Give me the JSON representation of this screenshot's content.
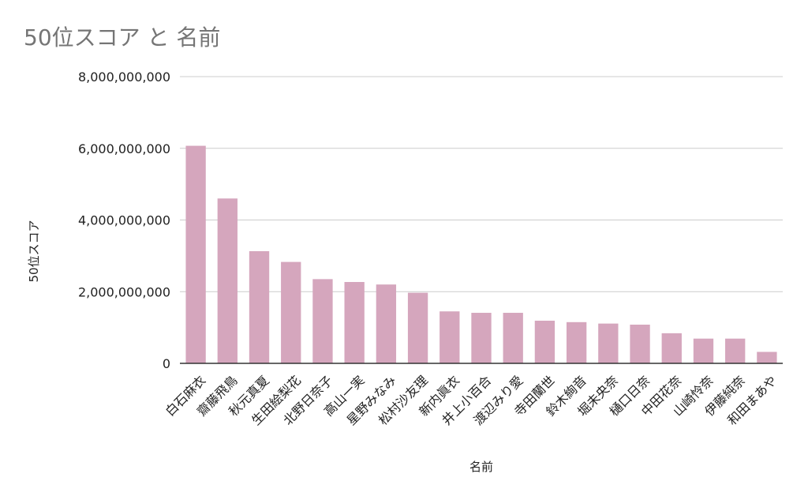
{
  "chart_data": {
    "type": "bar",
    "title": "50位スコア と 名前",
    "xlabel": "名前",
    "ylabel": "50位スコア",
    "ylim": [
      0,
      8000000000
    ],
    "yticks": [
      {
        "value": 0,
        "label": "0"
      },
      {
        "value": 2000000000,
        "label": "2,000,000,000"
      },
      {
        "value": 4000000000,
        "label": "4,000,000,000"
      },
      {
        "value": 6000000000,
        "label": "6,000,000,000"
      },
      {
        "value": 8000000000,
        "label": "8,000,000,000"
      }
    ],
    "grid": true,
    "bar_color": "#d5a6bd",
    "categories": [
      "白石麻衣",
      "齋藤飛鳥",
      "秋元真夏",
      "生田絵梨花",
      "北野日奈子",
      "高山一実",
      "星野みなみ",
      "松村沙友理",
      "新内眞衣",
      "井上小百合",
      "渡辺みり愛",
      "寺田蘭世",
      "鈴木絢音",
      "堀未央奈",
      "樋口日奈",
      "中田花奈",
      "山崎怜奈",
      "伊藤純奈",
      "和田まあや"
    ],
    "values": [
      6070000000,
      4600000000,
      3130000000,
      2830000000,
      2350000000,
      2270000000,
      2200000000,
      1970000000,
      1450000000,
      1410000000,
      1410000000,
      1190000000,
      1150000000,
      1110000000,
      1080000000,
      840000000,
      690000000,
      690000000,
      320000000
    ]
  }
}
